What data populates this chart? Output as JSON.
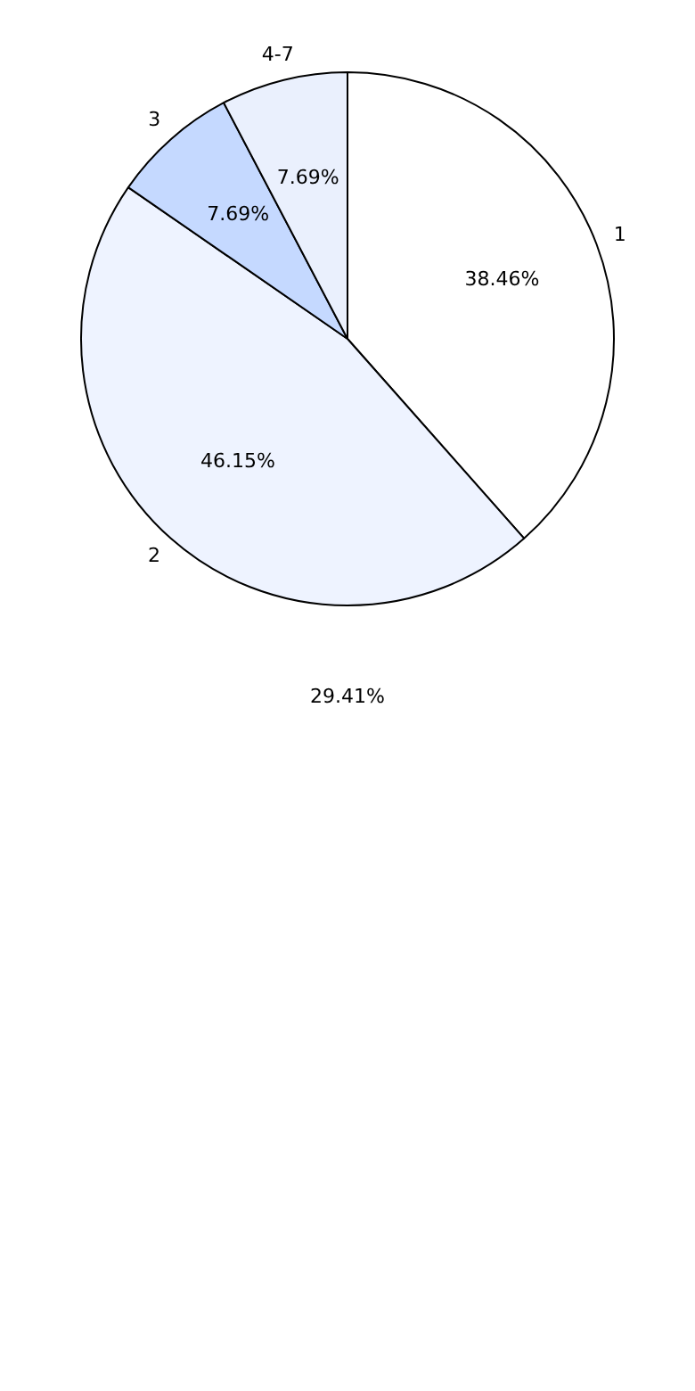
{
  "chart_data": {
    "type": "pie",
    "categories": [
      "1",
      "2",
      "3",
      "4-7"
    ],
    "values": [
      38.46,
      46.15,
      7.69,
      7.69
    ],
    "colors": [
      "#ffffff",
      "#eef3ff",
      "#c5d9ff",
      "#eaf0fd"
    ],
    "value_labels": [
      "38.46%",
      "46.15%",
      "7.69%",
      "7.69%"
    ],
    "legend": false,
    "annotations": [
      "29.41%"
    ]
  }
}
